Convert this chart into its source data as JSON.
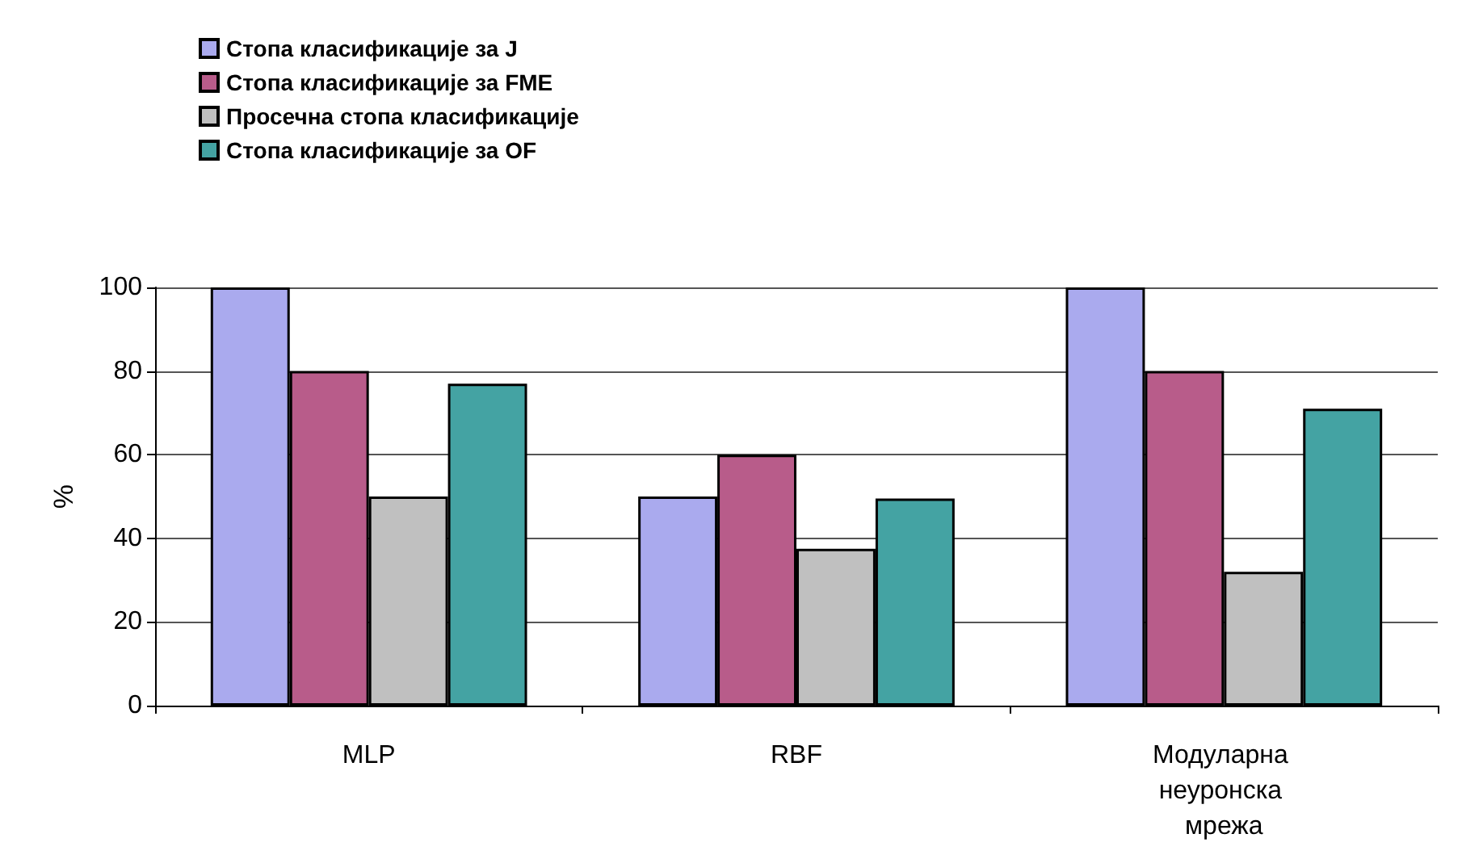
{
  "chart_data": {
    "type": "bar",
    "ylabel": "%",
    "categories": [
      "MLP",
      "RBF",
      "Модуларна неуронска мрежа"
    ],
    "series": [
      {
        "name": "Стопа класификације за J",
        "color": "#aaaaee",
        "values": [
          100,
          50,
          100
        ]
      },
      {
        "name": "Стопа класификације за FME",
        "color": "#b85c8a",
        "values": [
          80,
          60,
          80
        ]
      },
      {
        "name": "Просечна стопа класификације",
        "color": "#c0c0c0",
        "values": [
          50,
          37.5,
          32
        ]
      },
      {
        "name": "Стопа класификације за OF",
        "color": "#44a3a3",
        "values": [
          77,
          49.5,
          71
        ]
      }
    ],
    "ylim": [
      0,
      100
    ],
    "yticks": [
      0,
      20,
      40,
      60,
      80,
      100
    ],
    "grid": "y",
    "legend": "top left"
  }
}
